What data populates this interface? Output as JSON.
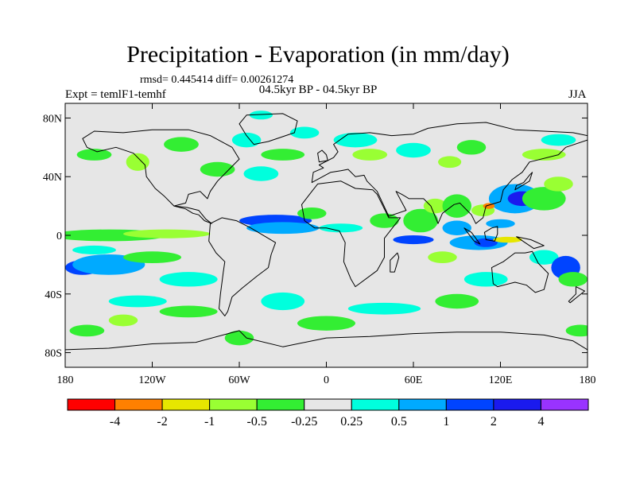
{
  "title": "Precipitation - Evaporation (in mm/day)",
  "stats": "rmsd= 0.445414 diff= 0.00261274",
  "subtitle": "04.5kyr BP - 04.5kyr BP",
  "expt": "Expt = temlF1-temhf",
  "season": "JJA",
  "map": {
    "lon_range": [
      -180,
      180
    ],
    "lat_range": [
      -90,
      90
    ],
    "background_color": "#e6e6e6",
    "lat_ticks": [
      {
        "value": 80,
        "label": "80N"
      },
      {
        "value": 40,
        "label": "40N"
      },
      {
        "value": 0,
        "label": "0"
      },
      {
        "value": -40,
        "label": "40S"
      },
      {
        "value": -80,
        "label": "80S"
      }
    ],
    "lon_ticks": [
      {
        "value": -180,
        "label": "180"
      },
      {
        "value": -120,
        "label": "120W"
      },
      {
        "value": -60,
        "label": "60W"
      },
      {
        "value": 0,
        "label": "0"
      },
      {
        "value": 60,
        "label": "60E"
      },
      {
        "value": 120,
        "label": "120E"
      },
      {
        "value": 180,
        "label": "180"
      }
    ]
  },
  "colorbar": {
    "colors": [
      "#ff0000",
      "#ff8000",
      "#e6e600",
      "#99ff33",
      "#33ee33",
      "#e6e6e6",
      "#00ffdd",
      "#00aaff",
      "#0044ff",
      "#1a1aee",
      "#9933ff"
    ],
    "labels": [
      "-4",
      "-2",
      "-1",
      "-0.5",
      "-0.25",
      "0.25",
      "0.5",
      "1",
      "2",
      "4"
    ]
  },
  "regions": [
    {
      "lon": -150,
      "lat": 0,
      "rx": 40,
      "ry": 4,
      "color": "#33ee33"
    },
    {
      "lon": -110,
      "lat": 1,
      "rx": 30,
      "ry": 3,
      "color": "#99ff33"
    },
    {
      "lon": -168,
      "lat": -22,
      "rx": 12,
      "ry": 5,
      "color": "#0044ff"
    },
    {
      "lon": -150,
      "lat": -20,
      "rx": 25,
      "ry": 7,
      "color": "#00aaff"
    },
    {
      "lon": -160,
      "lat": -10,
      "rx": 15,
      "ry": 3,
      "color": "#00ffdd"
    },
    {
      "lon": -120,
      "lat": -15,
      "rx": 20,
      "ry": 4,
      "color": "#33ee33"
    },
    {
      "lon": -95,
      "lat": -30,
      "rx": 20,
      "ry": 5,
      "color": "#00ffdd"
    },
    {
      "lon": -130,
      "lat": -45,
      "rx": 20,
      "ry": 4,
      "color": "#00ffdd"
    },
    {
      "lon": -95,
      "lat": -52,
      "rx": 20,
      "ry": 4,
      "color": "#33ee33"
    },
    {
      "lon": -165,
      "lat": -65,
      "rx": 12,
      "ry": 4,
      "color": "#33ee33"
    },
    {
      "lon": -140,
      "lat": -58,
      "rx": 10,
      "ry": 4,
      "color": "#99ff33"
    },
    {
      "lon": -160,
      "lat": 55,
      "rx": 12,
      "ry": 4,
      "color": "#33ee33"
    },
    {
      "lon": -130,
      "lat": 50,
      "rx": 8,
      "ry": 6,
      "color": "#99ff33"
    },
    {
      "lon": -100,
      "lat": 62,
      "rx": 12,
      "ry": 5,
      "color": "#33ee33"
    },
    {
      "lon": -75,
      "lat": 45,
      "rx": 12,
      "ry": 5,
      "color": "#33ee33"
    },
    {
      "lon": -45,
      "lat": 42,
      "rx": 12,
      "ry": 5,
      "color": "#00ffdd"
    },
    {
      "lon": -55,
      "lat": 65,
      "rx": 10,
      "ry": 5,
      "color": "#00ffdd"
    },
    {
      "lon": -45,
      "lat": 82,
      "rx": 8,
      "ry": 3,
      "color": "#00ffdd"
    },
    {
      "lon": -30,
      "lat": 55,
      "rx": 15,
      "ry": 4,
      "color": "#33ee33"
    },
    {
      "lon": -15,
      "lat": 70,
      "rx": 10,
      "ry": 4,
      "color": "#00ffdd"
    },
    {
      "lon": 20,
      "lat": 65,
      "rx": 15,
      "ry": 5,
      "color": "#00ffdd"
    },
    {
      "lon": 30,
      "lat": 55,
      "rx": 12,
      "ry": 4,
      "color": "#99ff33"
    },
    {
      "lon": 60,
      "lat": 58,
      "rx": 12,
      "ry": 5,
      "color": "#00ffdd"
    },
    {
      "lon": 85,
      "lat": 50,
      "rx": 8,
      "ry": 4,
      "color": "#99ff33"
    },
    {
      "lon": 100,
      "lat": 60,
      "rx": 10,
      "ry": 5,
      "color": "#33ee33"
    },
    {
      "lon": 150,
      "lat": 55,
      "rx": 15,
      "ry": 4,
      "color": "#99ff33"
    },
    {
      "lon": 160,
      "lat": 65,
      "rx": 12,
      "ry": 4,
      "color": "#00ffdd"
    },
    {
      "lon": -35,
      "lat": 10,
      "rx": 25,
      "ry": 4,
      "color": "#0044ff"
    },
    {
      "lon": -30,
      "lat": 5,
      "rx": 25,
      "ry": 4,
      "color": "#00aaff"
    },
    {
      "lon": -10,
      "lat": 15,
      "rx": 10,
      "ry": 4,
      "color": "#33ee33"
    },
    {
      "lon": 10,
      "lat": 5,
      "rx": 15,
      "ry": 3,
      "color": "#00ffdd"
    },
    {
      "lon": 40,
      "lat": 10,
      "rx": 10,
      "ry": 5,
      "color": "#33ee33"
    },
    {
      "lon": 65,
      "lat": 10,
      "rx": 12,
      "ry": 8,
      "color": "#33ee33"
    },
    {
      "lon": 60,
      "lat": -3,
      "rx": 14,
      "ry": 3,
      "color": "#0044ff"
    },
    {
      "lon": 75,
      "lat": 20,
      "rx": 8,
      "ry": 5,
      "color": "#99ff33"
    },
    {
      "lon": 90,
      "lat": 20,
      "rx": 10,
      "ry": 8,
      "color": "#33ee33"
    },
    {
      "lon": 90,
      "lat": 5,
      "rx": 10,
      "ry": 5,
      "color": "#00aaff"
    },
    {
      "lon": 105,
      "lat": -5,
      "rx": 20,
      "ry": 5,
      "color": "#00aaff"
    },
    {
      "lon": 110,
      "lat": -5,
      "rx": 8,
      "ry": 3,
      "color": "#0044ff"
    },
    {
      "lon": 125,
      "lat": -3,
      "rx": 10,
      "ry": 2,
      "color": "#e6e600"
    },
    {
      "lon": 130,
      "lat": 25,
      "rx": 18,
      "ry": 10,
      "color": "#00aaff"
    },
    {
      "lon": 135,
      "lat": 25,
      "rx": 10,
      "ry": 5,
      "color": "#1a1aee"
    },
    {
      "lon": 150,
      "lat": 25,
      "rx": 15,
      "ry": 8,
      "color": "#33ee33"
    },
    {
      "lon": 160,
      "lat": 35,
      "rx": 10,
      "ry": 5,
      "color": "#99ff33"
    },
    {
      "lon": 108,
      "lat": 17,
      "rx": 8,
      "ry": 4,
      "color": "#99ff33"
    },
    {
      "lon": 112,
      "lat": 20,
      "rx": 4,
      "ry": 2,
      "color": "#ff8000"
    },
    {
      "lon": 120,
      "lat": 8,
      "rx": 10,
      "ry": 3,
      "color": "#00aaff"
    },
    {
      "lon": 80,
      "lat": -15,
      "rx": 10,
      "ry": 4,
      "color": "#99ff33"
    },
    {
      "lon": 110,
      "lat": -30,
      "rx": 15,
      "ry": 5,
      "color": "#00ffdd"
    },
    {
      "lon": 150,
      "lat": -15,
      "rx": 10,
      "ry": 5,
      "color": "#00ffdd"
    },
    {
      "lon": 165,
      "lat": -22,
      "rx": 10,
      "ry": 8,
      "color": "#0044ff"
    },
    {
      "lon": 170,
      "lat": -30,
      "rx": 10,
      "ry": 5,
      "color": "#33ee33"
    },
    {
      "lon": 40,
      "lat": -50,
      "rx": 25,
      "ry": 4,
      "color": "#00ffdd"
    },
    {
      "lon": 0,
      "lat": -60,
      "rx": 20,
      "ry": 5,
      "color": "#33ee33"
    },
    {
      "lon": -30,
      "lat": -45,
      "rx": 15,
      "ry": 6,
      "color": "#00ffdd"
    },
    {
      "lon": 90,
      "lat": -45,
      "rx": 15,
      "ry": 5,
      "color": "#33ee33"
    },
    {
      "lon": -60,
      "lat": -70,
      "rx": 10,
      "ry": 5,
      "color": "#33ee33"
    },
    {
      "lon": 175,
      "lat": -65,
      "rx": 10,
      "ry": 4,
      "color": "#33ee33"
    }
  ],
  "continents": [
    {
      "name": "north-america",
      "points": [
        [
          -168,
          66
        ],
        [
          -160,
          71
        ],
        [
          -140,
          70
        ],
        [
          -120,
          72
        ],
        [
          -95,
          72
        ],
        [
          -80,
          68
        ],
        [
          -65,
          60
        ],
        [
          -60,
          52
        ],
        [
          -67,
          45
        ],
        [
          -75,
          37
        ],
        [
          -80,
          30
        ],
        [
          -82,
          25
        ],
        [
          -87,
          30
        ],
        [
          -95,
          28
        ],
        [
          -97,
          22
        ],
        [
          -105,
          20
        ],
        [
          -112,
          27
        ],
        [
          -118,
          32
        ],
        [
          -124,
          40
        ],
        [
          -125,
          48
        ],
        [
          -133,
          56
        ],
        [
          -145,
          60
        ],
        [
          -158,
          57
        ],
        [
          -165,
          60
        ]
      ]
    },
    {
      "name": "greenland",
      "points": [
        [
          -55,
          82
        ],
        [
          -30,
          83
        ],
        [
          -20,
          78
        ],
        [
          -22,
          70
        ],
        [
          -40,
          64
        ],
        [
          -50,
          62
        ],
        [
          -55,
          68
        ],
        [
          -60,
          76
        ]
      ]
    },
    {
      "name": "central-america",
      "points": [
        [
          -105,
          20
        ],
        [
          -97,
          18
        ],
        [
          -92,
          15
        ],
        [
          -88,
          14
        ],
        [
          -84,
          10
        ],
        [
          -79,
          8
        ],
        [
          -83,
          11
        ],
        [
          -88,
          17
        ],
        [
          -96,
          19
        ]
      ]
    },
    {
      "name": "south-america",
      "points": [
        [
          -80,
          8
        ],
        [
          -72,
          12
        ],
        [
          -62,
          10
        ],
        [
          -52,
          5
        ],
        [
          -35,
          -5
        ],
        [
          -38,
          -13
        ],
        [
          -40,
          -22
        ],
        [
          -48,
          -28
        ],
        [
          -58,
          -36
        ],
        [
          -65,
          -42
        ],
        [
          -68,
          -52
        ],
        [
          -70,
          -55
        ],
        [
          -74,
          -50
        ],
        [
          -73,
          -40
        ],
        [
          -71,
          -25
        ],
        [
          -70,
          -18
        ],
        [
          -76,
          -12
        ],
        [
          -81,
          -4
        ]
      ]
    },
    {
      "name": "africa",
      "points": [
        [
          -17,
          21
        ],
        [
          -10,
          30
        ],
        [
          -6,
          35
        ],
        [
          10,
          37
        ],
        [
          20,
          32
        ],
        [
          32,
          31
        ],
        [
          35,
          28
        ],
        [
          43,
          12
        ],
        [
          51,
          12
        ],
        [
          40,
          -2
        ],
        [
          40,
          -15
        ],
        [
          35,
          -24
        ],
        [
          20,
          -35
        ],
        [
          17,
          -30
        ],
        [
          12,
          -18
        ],
        [
          13,
          -5
        ],
        [
          9,
          3
        ],
        [
          0,
          5
        ],
        [
          -8,
          5
        ],
        [
          -15,
          10
        ]
      ]
    },
    {
      "name": "eurasia",
      "points": [
        [
          -10,
          36
        ],
        [
          -9,
          43
        ],
        [
          -2,
          46
        ],
        [
          -5,
          48
        ],
        [
          5,
          53
        ],
        [
          8,
          57
        ],
        [
          5,
          62
        ],
        [
          15,
          69
        ],
        [
          30,
          70
        ],
        [
          45,
          68
        ],
        [
          60,
          69
        ],
        [
          70,
          73
        ],
        [
          90,
          76
        ],
        [
          110,
          77
        ],
        [
          130,
          72
        ],
        [
          150,
          71
        ],
        [
          170,
          70
        ],
        [
          180,
          68
        ],
        [
          180,
          65
        ],
        [
          165,
          60
        ],
        [
          160,
          55
        ],
        [
          140,
          50
        ],
        [
          135,
          43
        ],
        [
          128,
          38
        ],
        [
          122,
          31
        ],
        [
          120,
          23
        ],
        [
          110,
          20
        ],
        [
          108,
          12
        ],
        [
          103,
          8
        ],
        [
          100,
          14
        ],
        [
          97,
          17
        ],
        [
          92,
          22
        ],
        [
          88,
          21
        ],
        [
          80,
          15
        ],
        [
          77,
          8
        ],
        [
          72,
          20
        ],
        [
          67,
          25
        ],
        [
          57,
          25
        ],
        [
          52,
          28
        ],
        [
          48,
          30
        ],
        [
          55,
          17
        ],
        [
          43,
          13
        ],
        [
          35,
          30
        ],
        [
          28,
          37
        ],
        [
          26,
          41
        ],
        [
          20,
          40
        ],
        [
          15,
          45
        ],
        [
          10,
          44
        ],
        [
          3,
          43
        ]
      ]
    },
    {
      "name": "australia",
      "points": [
        [
          114,
          -22
        ],
        [
          122,
          -18
        ],
        [
          130,
          -12
        ],
        [
          137,
          -12
        ],
        [
          142,
          -11
        ],
        [
          146,
          -19
        ],
        [
          153,
          -26
        ],
        [
          150,
          -37
        ],
        [
          144,
          -39
        ],
        [
          138,
          -34
        ],
        [
          130,
          -32
        ],
        [
          118,
          -35
        ],
        [
          115,
          -33
        ]
      ]
    },
    {
      "name": "borneo",
      "points": [
        [
          109,
          2
        ],
        [
          114,
          5
        ],
        [
          118,
          6
        ],
        [
          118,
          1
        ],
        [
          116,
          -4
        ],
        [
          110,
          -3
        ]
      ]
    },
    {
      "name": "sumatra",
      "points": [
        [
          95,
          5
        ],
        [
          100,
          2
        ],
        [
          106,
          -6
        ],
        [
          102,
          -4
        ],
        [
          98,
          1
        ]
      ]
    },
    {
      "name": "new-guinea",
      "points": [
        [
          131,
          -1
        ],
        [
          141,
          -3
        ],
        [
          150,
          -7
        ],
        [
          143,
          -9
        ],
        [
          137,
          -5
        ]
      ]
    },
    {
      "name": "japan",
      "points": [
        [
          130,
          31
        ],
        [
          135,
          34
        ],
        [
          140,
          37
        ],
        [
          142,
          43
        ],
        [
          140,
          41
        ],
        [
          136,
          36
        ],
        [
          131,
          34
        ]
      ]
    },
    {
      "name": "madagascar",
      "points": [
        [
          44,
          -25
        ],
        [
          47,
          -25
        ],
        [
          50,
          -15
        ],
        [
          49,
          -12
        ],
        [
          44,
          -17
        ]
      ]
    },
    {
      "name": "uk",
      "points": [
        [
          -5,
          50
        ],
        [
          1,
          51
        ],
        [
          0,
          55
        ],
        [
          -3,
          58
        ],
        [
          -6,
          56
        ]
      ]
    },
    {
      "name": "new-zealand",
      "points": [
        [
          172,
          -35
        ],
        [
          178,
          -38
        ],
        [
          173,
          -42
        ],
        [
          168,
          -46
        ],
        [
          167,
          -45
        ],
        [
          172,
          -40
        ]
      ]
    },
    {
      "name": "antarctica",
      "points": [
        [
          -180,
          -78
        ],
        [
          -150,
          -77
        ],
        [
          -120,
          -74
        ],
        [
          -90,
          -73
        ],
        [
          -60,
          -65
        ],
        [
          -55,
          -70
        ],
        [
          -30,
          -76
        ],
        [
          0,
          -70
        ],
        [
          30,
          -69
        ],
        [
          60,
          -67
        ],
        [
          90,
          -66
        ],
        [
          120,
          -66
        ],
        [
          150,
          -68
        ],
        [
          170,
          -72
        ],
        [
          180,
          -78
        ],
        [
          180,
          -90
        ],
        [
          -180,
          -90
        ]
      ]
    }
  ]
}
